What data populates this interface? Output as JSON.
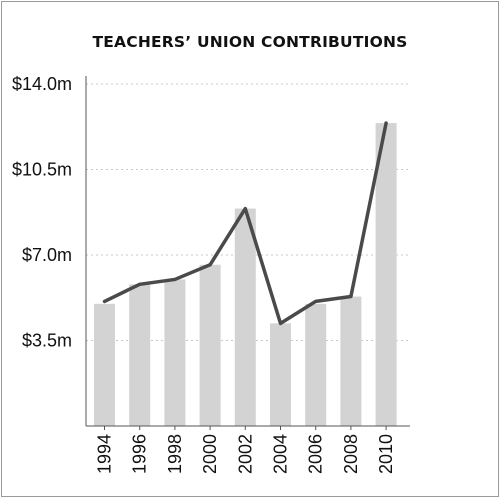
{
  "chart_data": {
    "type": "bar",
    "title": "TEACHERS’ UNION CONTRIBUTIONS",
    "xlabel": "",
    "ylabel": "",
    "categories": [
      "1994",
      "1996",
      "1998",
      "2000",
      "2002",
      "2004",
      "2006",
      "2008",
      "2010"
    ],
    "series": [
      {
        "type": "bar",
        "values": [
          5.0,
          5.8,
          6.0,
          6.6,
          8.9,
          4.2,
          5.0,
          5.3,
          12.4
        ]
      },
      {
        "type": "line",
        "values": [
          5.1,
          5.8,
          6.0,
          6.6,
          8.9,
          4.2,
          5.1,
          5.3,
          12.4
        ]
      }
    ],
    "y_ticks": [
      "$3.5m",
      "$7.0m",
      "$10.5m",
      "$14.0m"
    ],
    "y_tick_values": [
      3.5,
      7.0,
      10.5,
      14.0
    ],
    "ylim": [
      0,
      14.0
    ],
    "grid": "horizontal dotted",
    "legend": "none",
    "colors": {
      "bars": "#d3d3d3",
      "line": "#4a4a4a",
      "grid": "#c8c8c8",
      "axis": "#555555"
    }
  }
}
